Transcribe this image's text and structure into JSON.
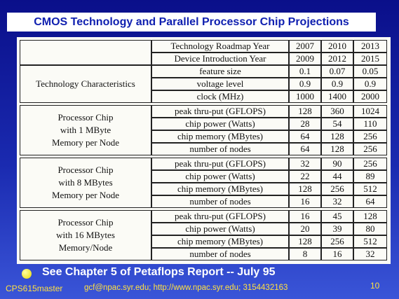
{
  "title": "CMOS Technology and Parallel Processor Chip Projections",
  "table": {
    "header": [
      [
        "Technology Roadmap Year",
        "2007",
        "2010",
        "2013"
      ],
      [
        "Device Introduction Year",
        "2009",
        "2012",
        "2015"
      ]
    ],
    "groups": [
      {
        "label": [
          "Technology Characteristics"
        ],
        "rows": [
          [
            "feature size",
            "0.1",
            "0.07",
            "0.05"
          ],
          [
            "voltage level",
            "0.9",
            "0.9",
            "0.9"
          ],
          [
            "clock (MHz)",
            "1000",
            "1400",
            "2000"
          ]
        ]
      },
      {
        "label": [
          "Processor Chip",
          "with 1 MByte",
          "Memory per Node"
        ],
        "rows": [
          [
            "peak thru-put (GFLOPS)",
            "128",
            "360",
            "1024"
          ],
          [
            "chip power (Watts)",
            "28",
            "54",
            "110"
          ],
          [
            "chip memory (MBytes)",
            "64",
            "128",
            "256"
          ],
          [
            "number of nodes",
            "64",
            "128",
            "256"
          ]
        ]
      },
      {
        "label": [
          "Processor Chip",
          "with 8 MBytes",
          "Memory per Node"
        ],
        "rows": [
          [
            "peak thru-put (GFLOPS)",
            "32",
            "90",
            "256"
          ],
          [
            "chip power (Watts)",
            "22",
            "44",
            "89"
          ],
          [
            "chip memory (MBytes)",
            "128",
            "256",
            "512"
          ],
          [
            "number of nodes",
            "16",
            "32",
            "64"
          ]
        ]
      },
      {
        "label": [
          "Processor Chip",
          "with 16 MBytes",
          "Memory/Node"
        ],
        "rows": [
          [
            "peak thru-put (GFLOPS)",
            "16",
            "45",
            "128"
          ],
          [
            "chip power (Watts)",
            "20",
            "39",
            "80"
          ],
          [
            "chip memory (MBytes)",
            "128",
            "256",
            "512"
          ],
          [
            "number of nodes",
            "8",
            "16",
            "32"
          ]
        ]
      }
    ]
  },
  "bullet": "See Chapter 5 of Petaflops Report -- July 95",
  "footer": {
    "left": "CPS615master",
    "center": "gcf@npac.syr.edu; http://www.npac.syr.edu; 3154432163",
    "page": "10"
  }
}
